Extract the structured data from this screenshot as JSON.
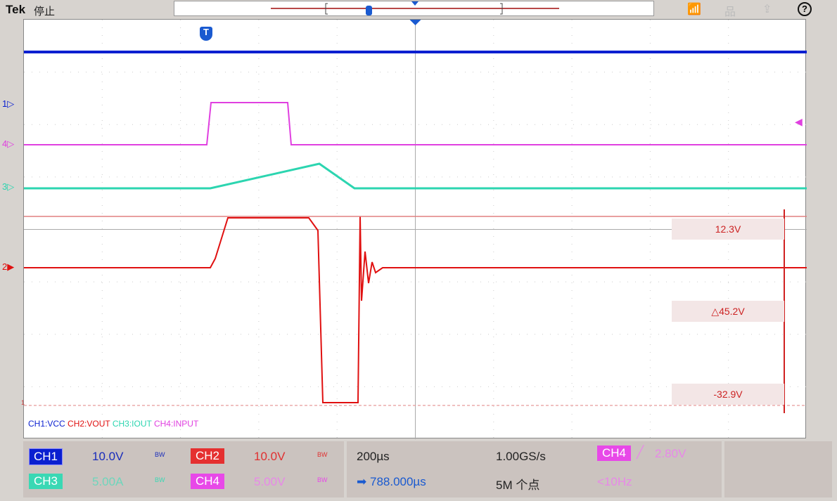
{
  "header": {
    "brand": "Tek",
    "state": "停止",
    "icons": [
      "wifi-icon",
      "network-icon",
      "export-icon",
      "help-icon"
    ],
    "help_glyph": "?"
  },
  "trigger_marker": "T",
  "channel_markers": [
    {
      "label": "1",
      "color": "#0a1fd0"
    },
    {
      "label": "4",
      "color": "#e040e0"
    },
    {
      "label": "3",
      "color": "#2cd5b0"
    },
    {
      "label": "2",
      "color": "#e01010"
    }
  ],
  "cursor_marker": "1",
  "legend": [
    {
      "text": "CH1:VCC",
      "color": "#0a1fd0"
    },
    {
      "text": " CH2:VOUT",
      "color": "#e01010"
    },
    {
      "text": " CH3:IOUT",
      "color": "#2cd5b0"
    },
    {
      "text": " CH4:INPUT",
      "color": "#e040e0"
    }
  ],
  "measurements": {
    "cursor_a": "12.3V",
    "delta": "△45.2V",
    "cursor_b": "-32.9V"
  },
  "channels": [
    {
      "name": "CH1",
      "scale": "10.0V",
      "bw": "BW",
      "color": "#0a1fd0"
    },
    {
      "name": "CH2",
      "scale": "10.0V",
      "bw": "BW",
      "color": "#e01010"
    },
    {
      "name": "CH3",
      "scale": "5.00A",
      "bw": "BW",
      "color": "#2cd5b0"
    },
    {
      "name": "CH4",
      "scale": "5.00V",
      "bw": "BW",
      "color": "#e040e0"
    }
  ],
  "horizontal": {
    "time_div": "200µs",
    "sample_rate": "1.00GS/s",
    "position": "788.000µs",
    "record_length": "5M 个点"
  },
  "trigger": {
    "source": "CH4",
    "slope": "rising",
    "level": "2.80V",
    "frequency": "<10Hz"
  }
}
